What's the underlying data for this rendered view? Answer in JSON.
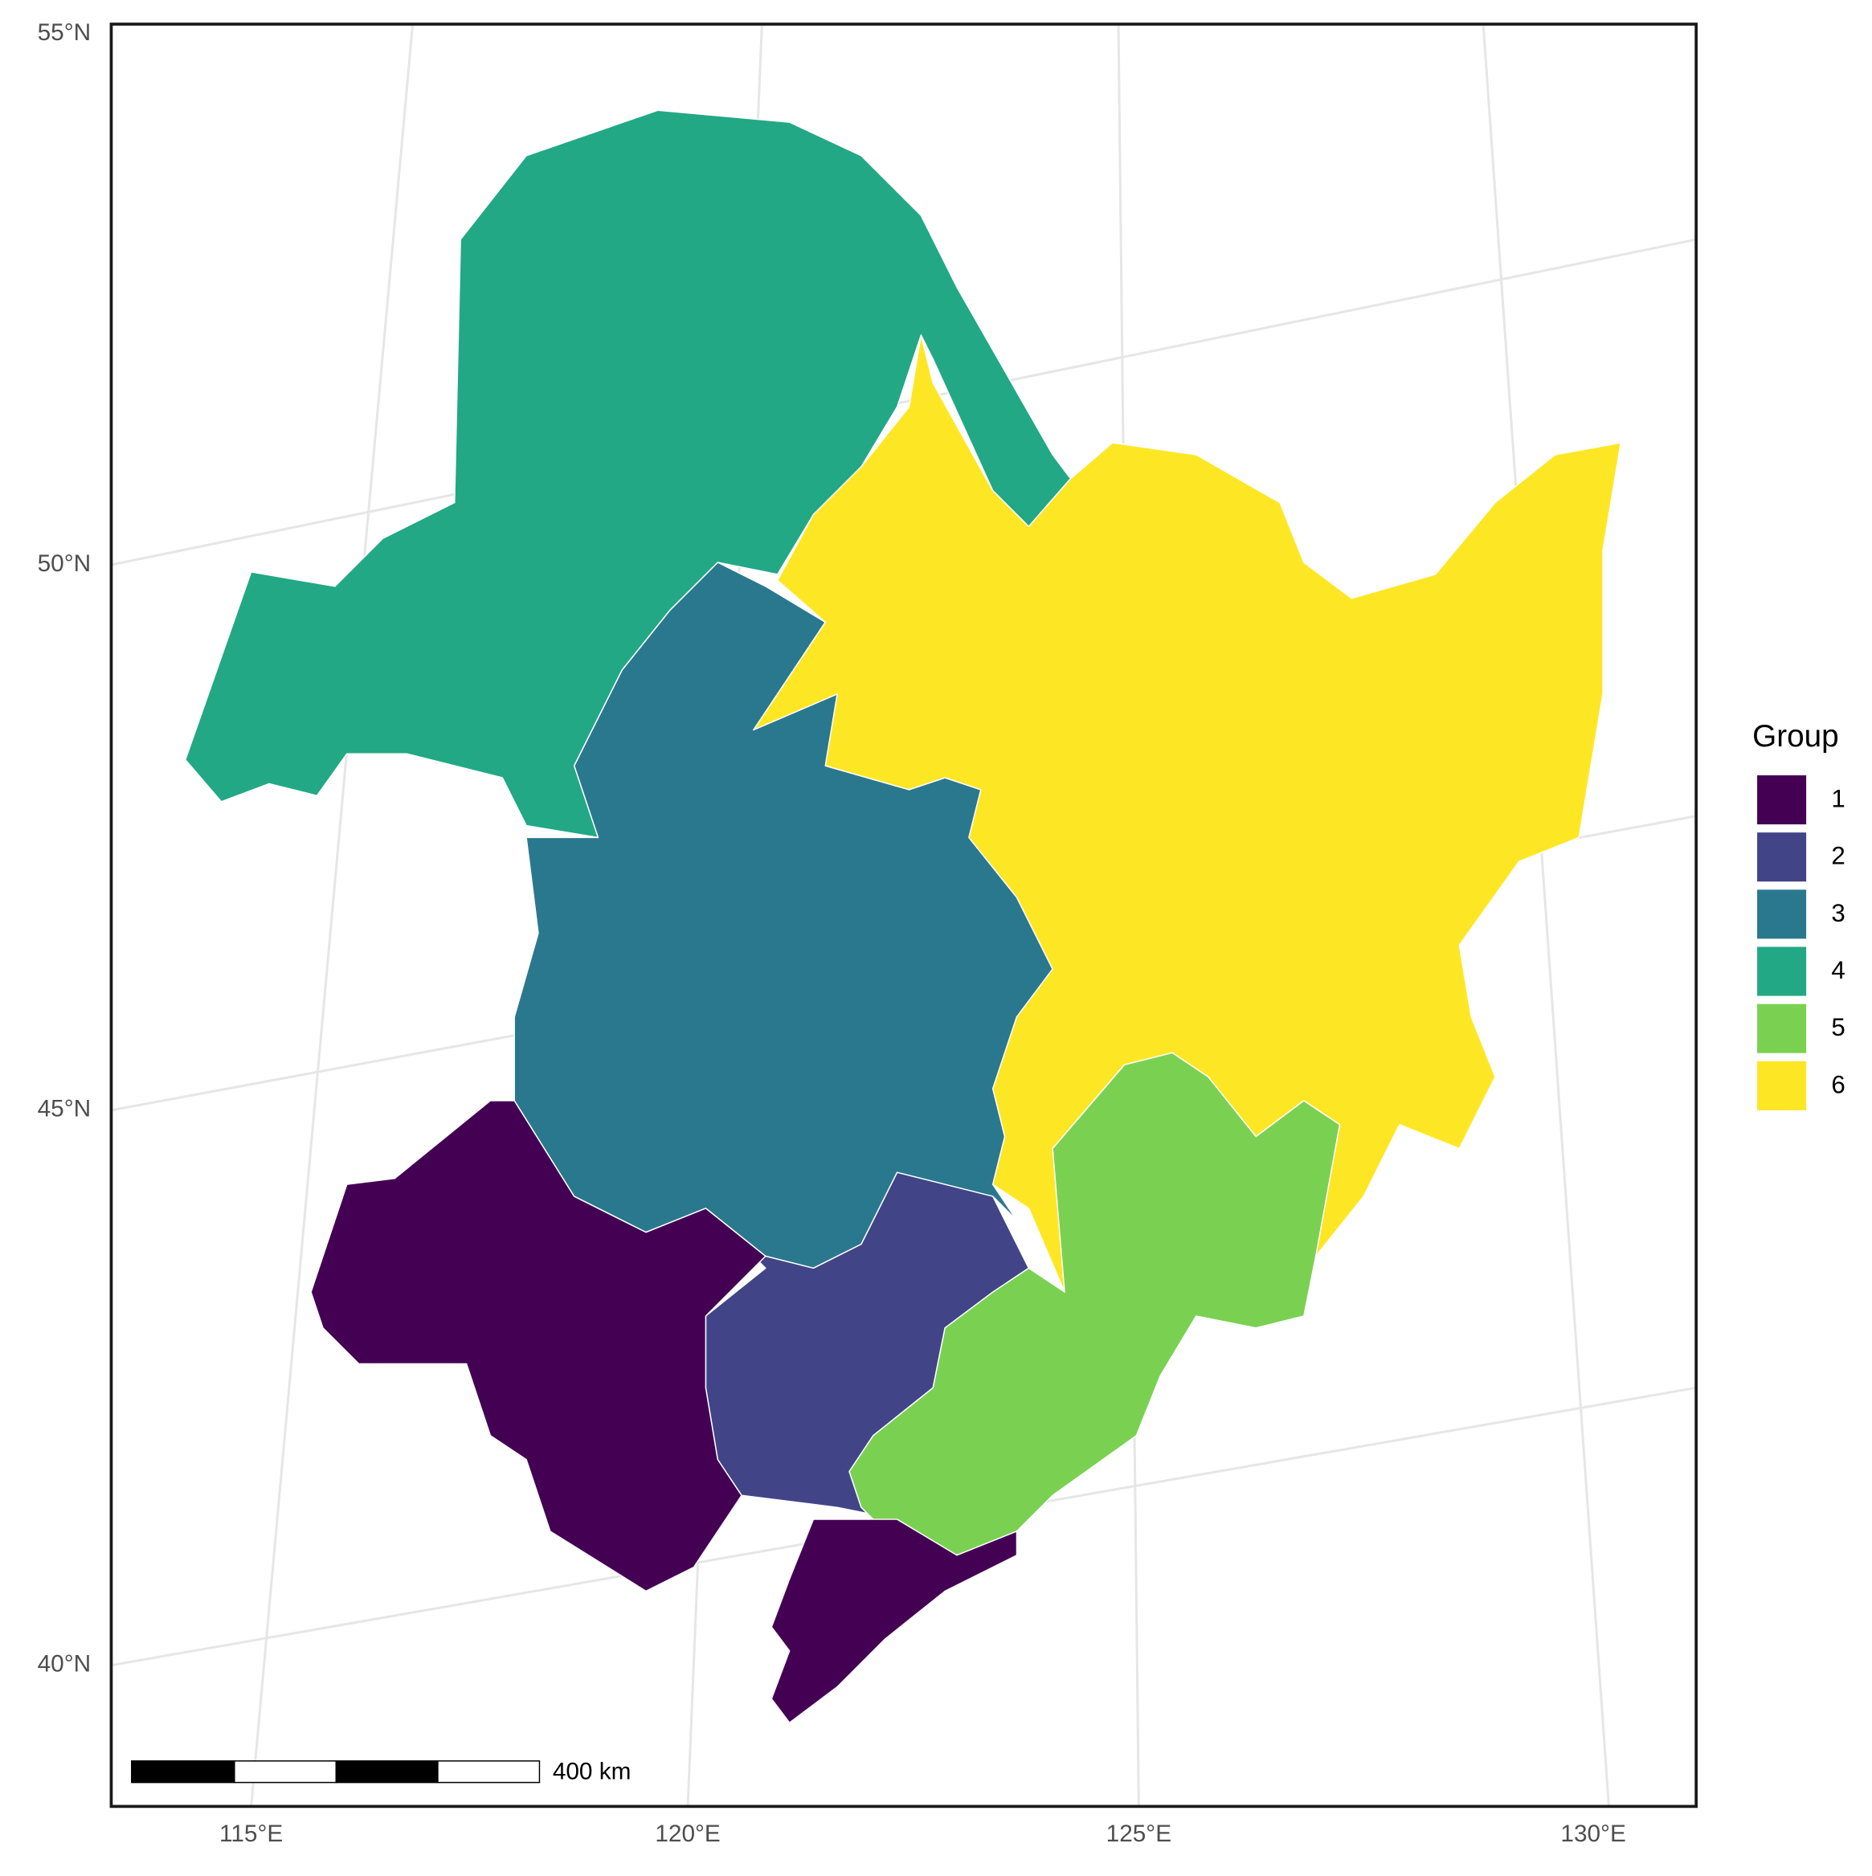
{
  "map": {
    "lat_labels": [
      "55°N",
      "50°N",
      "45°N",
      "40°N"
    ],
    "lon_labels": [
      "115°E",
      "120°E",
      "125°E",
      "130°E"
    ],
    "legend": {
      "title": "Group",
      "items": [
        {
          "label": "1",
          "color": "#440154"
        },
        {
          "label": "2",
          "color": "#414487"
        },
        {
          "label": "3",
          "color": "#2a788e"
        },
        {
          "label": "4",
          "color": "#22a884"
        },
        {
          "label": "5",
          "color": "#7ad151"
        },
        {
          "label": "6",
          "color": "#fde725"
        }
      ]
    },
    "scale_bar": {
      "label": "400 km"
    }
  }
}
